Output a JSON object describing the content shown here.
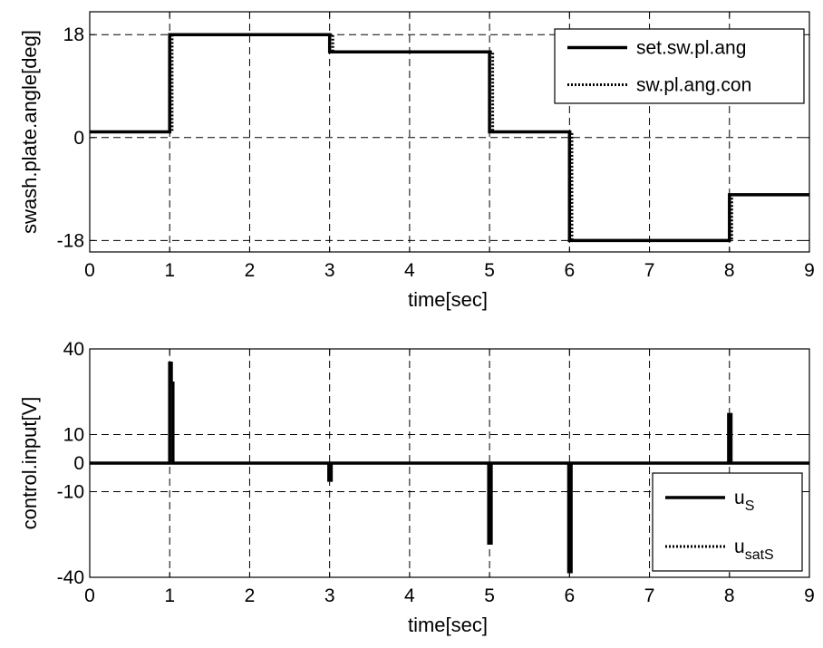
{
  "chart_data": [
    {
      "type": "line",
      "xlabel": "time[sec]",
      "ylabel": "swash.plate.angle[deg]",
      "xlim": [
        0,
        9
      ],
      "ylim": [
        -20,
        22
      ],
      "xticks": [
        0,
        1,
        2,
        3,
        4,
        5,
        6,
        7,
        8,
        9
      ],
      "yticks": [
        -18,
        0,
        18
      ],
      "grid": true,
      "legend_position": "top-right",
      "series": [
        {
          "name": "set.sw.pl.ang",
          "style": "solid",
          "x": [
            0,
            1,
            1,
            3,
            3,
            5,
            5,
            6,
            6,
            8,
            8,
            9
          ],
          "y": [
            1,
            1,
            18,
            18,
            15,
            15,
            1,
            1,
            -18,
            -18,
            -10,
            -10
          ]
        },
        {
          "name": "sw.pl.ang.con",
          "style": "dotted",
          "x": [
            0,
            1.03,
            1.03,
            3.04,
            3.04,
            5.04,
            5.04,
            6.03,
            6.03,
            8.03,
            8.03,
            9
          ],
          "y": [
            1,
            1,
            18,
            18,
            15,
            15,
            1,
            1,
            -18,
            -18,
            -10,
            -10
          ]
        }
      ]
    },
    {
      "type": "line",
      "xlabel": "time[sec]",
      "ylabel": "control.input[V]",
      "xlim": [
        0,
        9
      ],
      "ylim": [
        -40,
        40
      ],
      "xticks": [
        0,
        1,
        2,
        3,
        4,
        5,
        6,
        7,
        8,
        9
      ],
      "yticks": [
        -40,
        -10,
        0,
        10,
        40
      ],
      "grid": true,
      "legend_position": "bottom-right",
      "series": [
        {
          "name": "u_S",
          "style": "solid",
          "x": [
            0,
            1.0,
            1.0,
            1.02,
            1.02,
            1.04,
            1.04,
            2.99,
            2.99,
            3.02,
            3.02,
            4.99,
            4.99,
            5.02,
            5.02,
            5.99,
            5.99,
            6.02,
            6.02,
            7.99,
            7.99,
            8.02,
            8.02,
            9
          ],
          "y": [
            0,
            0,
            35,
            35,
            28,
            28,
            0,
            0,
            -6,
            -6,
            0,
            0,
            -28,
            -28,
            0,
            0,
            -38,
            -38,
            0,
            0,
            17,
            17,
            0,
            0
          ]
        },
        {
          "name": "u_satS",
          "style": "dotted",
          "x": [
            0,
            9
          ],
          "y": [
            0,
            0
          ]
        }
      ]
    }
  ],
  "legend": {
    "top": [
      "set.sw.pl.ang",
      "sw.pl.ang.con"
    ],
    "bottom": [
      {
        "main": "u",
        "sub": "S"
      },
      {
        "main": "u",
        "sub": "satS"
      }
    ]
  }
}
